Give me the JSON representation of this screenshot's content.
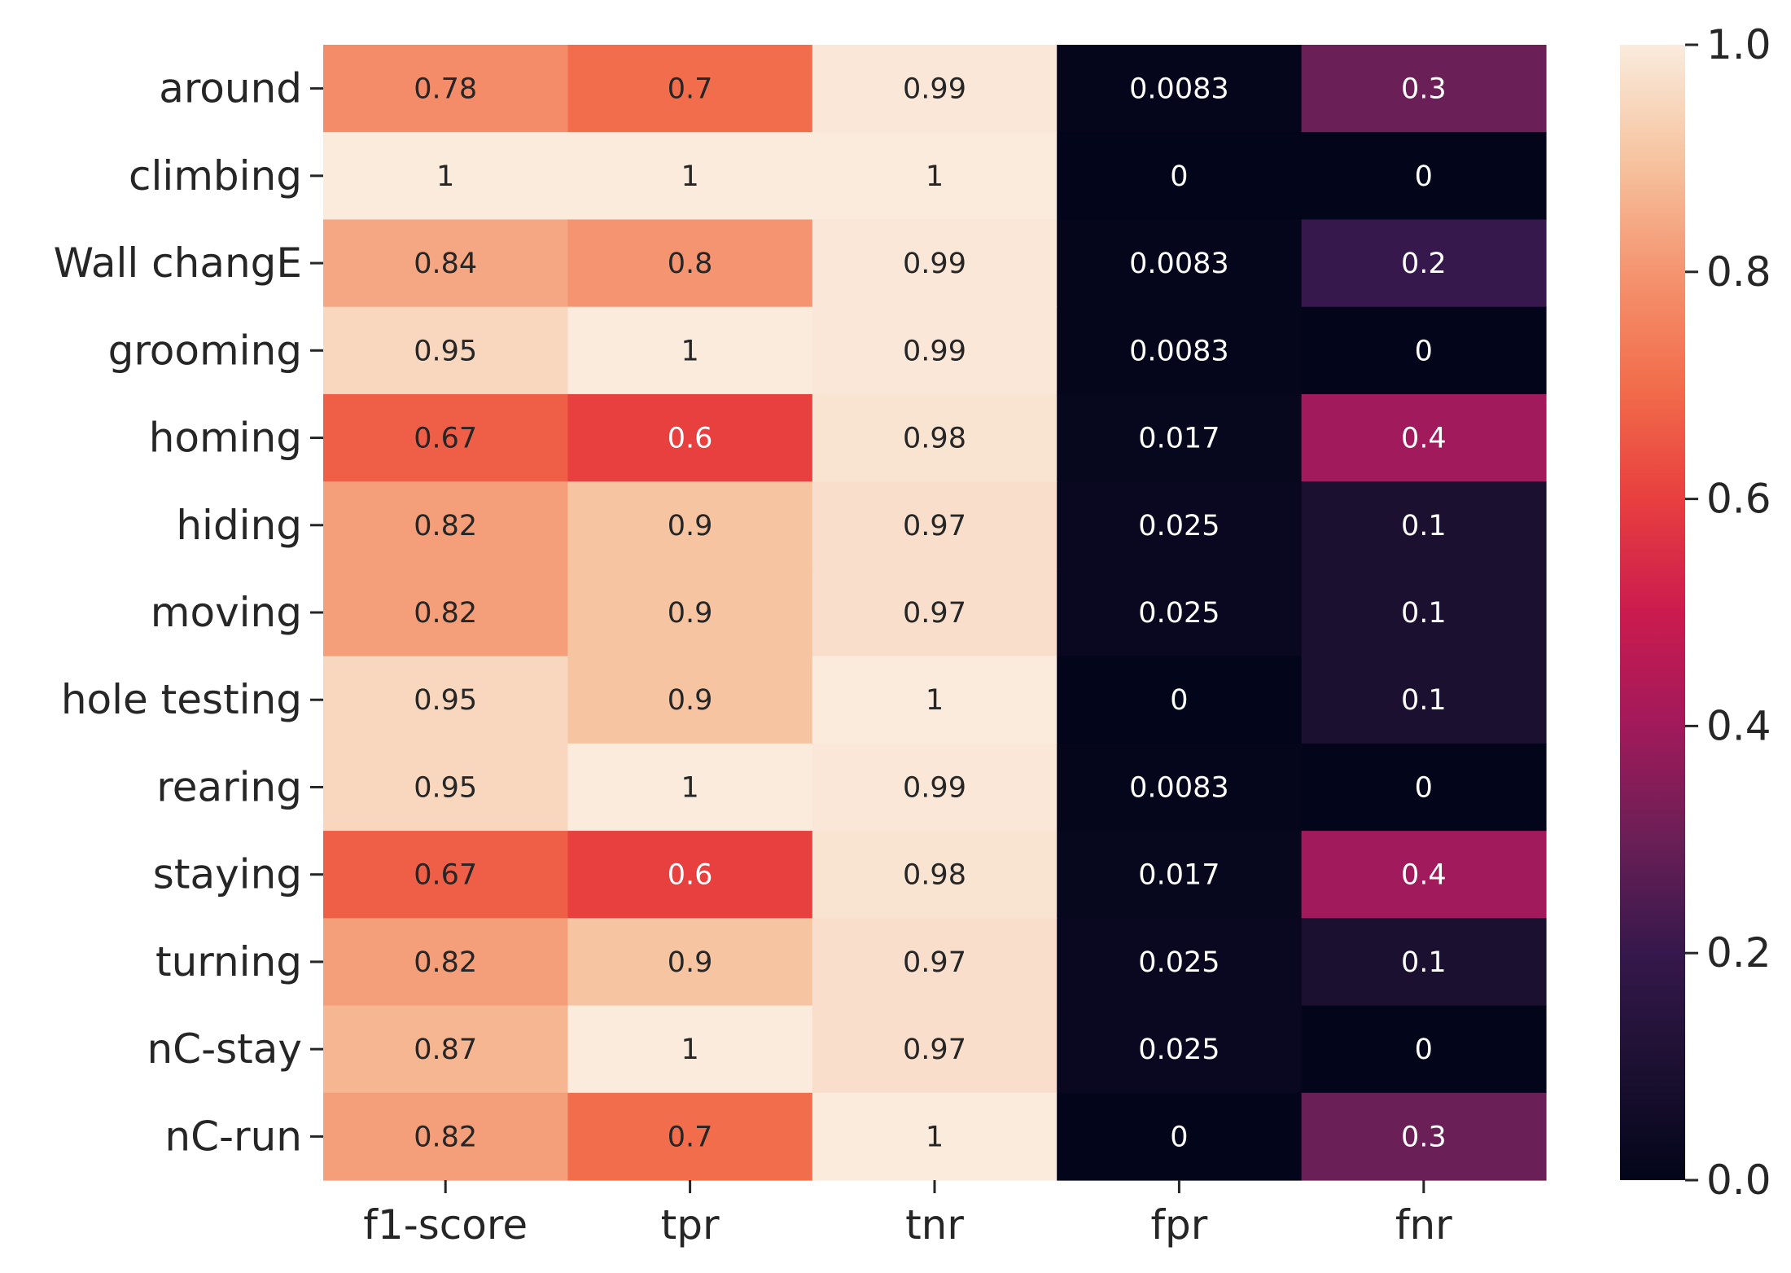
{
  "chart_data": {
    "type": "heatmap",
    "title": "",
    "xlabel": "",
    "ylabel": "",
    "columns": [
      "f1-score",
      "tpr",
      "tnr",
      "fpr",
      "fnr"
    ],
    "rows": [
      "around",
      "climbing",
      "Wall changE",
      "grooming",
      "homing",
      "hiding",
      "moving",
      "hole testing",
      "rearing",
      "staying",
      "turning",
      "nC-stay",
      "nC-run"
    ],
    "values": [
      [
        0.78,
        0.7,
        0.99,
        0.0083,
        0.3
      ],
      [
        1,
        1,
        1,
        0,
        0
      ],
      [
        0.84,
        0.8,
        0.99,
        0.0083,
        0.2
      ],
      [
        0.95,
        1,
        0.99,
        0.0083,
        0
      ],
      [
        0.67,
        0.6,
        0.98,
        0.017,
        0.4
      ],
      [
        0.82,
        0.9,
        0.97,
        0.025,
        0.1
      ],
      [
        0.82,
        0.9,
        0.97,
        0.025,
        0.1
      ],
      [
        0.95,
        0.9,
        1,
        0,
        0.1
      ],
      [
        0.95,
        1,
        0.99,
        0.0083,
        0
      ],
      [
        0.67,
        0.6,
        0.98,
        0.017,
        0.4
      ],
      [
        0.82,
        0.9,
        0.97,
        0.025,
        0.1
      ],
      [
        0.87,
        1,
        0.97,
        0.025,
        0
      ],
      [
        0.82,
        0.7,
        1,
        0,
        0.3
      ]
    ],
    "cell_labels": [
      [
        "0.78",
        "0.7",
        "0.99",
        "0.0083",
        "0.3"
      ],
      [
        "1",
        "1",
        "1",
        "0",
        "0"
      ],
      [
        "0.84",
        "0.8",
        "0.99",
        "0.0083",
        "0.2"
      ],
      [
        "0.95",
        "1",
        "0.99",
        "0.0083",
        "0"
      ],
      [
        "0.67",
        "0.6",
        "0.98",
        "0.017",
        "0.4"
      ],
      [
        "0.82",
        "0.9",
        "0.97",
        "0.025",
        "0.1"
      ],
      [
        "0.82",
        "0.9",
        "0.97",
        "0.025",
        "0.1"
      ],
      [
        "0.95",
        "0.9",
        "1",
        "0",
        "0.1"
      ],
      [
        "0.95",
        "1",
        "0.99",
        "0.0083",
        "0"
      ],
      [
        "0.67",
        "0.6",
        "0.98",
        "0.017",
        "0.4"
      ],
      [
        "0.82",
        "0.9",
        "0.97",
        "0.025",
        "0.1"
      ],
      [
        "0.87",
        "1",
        "0.97",
        "0.025",
        "0"
      ],
      [
        "0.82",
        "0.7",
        "1",
        "0",
        "0.3"
      ]
    ],
    "colorbar": {
      "range": [
        0.0,
        1.0
      ],
      "ticks": [
        0.0,
        0.2,
        0.4,
        0.6,
        0.8,
        1.0
      ],
      "tick_labels": [
        "0.0",
        "0.2",
        "0.4",
        "0.6",
        "0.8",
        "1.0"
      ],
      "colormap": "rocket"
    },
    "colormap_stops": [
      {
        "v": 0.0,
        "c": "#03051a"
      },
      {
        "v": 0.1,
        "c": "#1c1031"
      },
      {
        "v": 0.2,
        "c": "#36184c"
      },
      {
        "v": 0.3,
        "c": "#6a1f56"
      },
      {
        "v": 0.4,
        "c": "#a11a5b"
      },
      {
        "v": 0.5,
        "c": "#cb1b4f"
      },
      {
        "v": 0.6,
        "c": "#e83f3f"
      },
      {
        "v": 0.7,
        "c": "#f26d4b"
      },
      {
        "v": 0.8,
        "c": "#f59470"
      },
      {
        "v": 0.9,
        "c": "#f6c4a0"
      },
      {
        "v": 1.0,
        "c": "#faebdd"
      }
    ],
    "grid": false,
    "legend": "colorbar-right"
  }
}
